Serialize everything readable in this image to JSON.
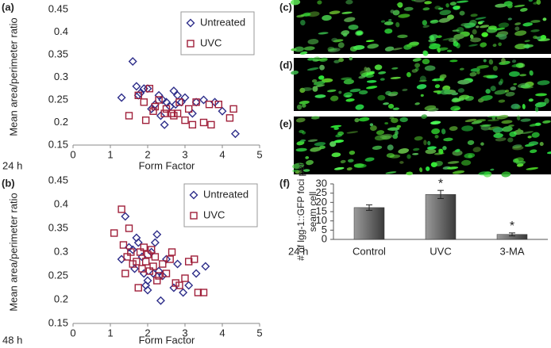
{
  "chart_data": [
    {
      "type": "scatter",
      "panel_label": "(a)",
      "annotation": "24 h",
      "xlabel": "Form Factor",
      "ylabel": "Mean area/perimeter ratio",
      "xlim": [
        0,
        5
      ],
      "xticks": [
        0,
        1,
        2,
        3,
        4,
        5
      ],
      "ylim": [
        0.15,
        0.45
      ],
      "yticks": [
        0.15,
        0.2,
        0.25,
        0.3,
        0.35,
        0.4,
        0.45
      ],
      "legend": "upper right",
      "series": [
        {
          "name": "Untreated",
          "color": "#2e2e8a",
          "marker": "diamond",
          "x": [
            1.3,
            1.6,
            1.7,
            1.75,
            1.8,
            1.9,
            2.0,
            2.1,
            2.2,
            2.3,
            2.35,
            2.4,
            2.45,
            2.5,
            2.6,
            2.7,
            2.75,
            2.8,
            2.9,
            3.0,
            3.2,
            3.3,
            3.5,
            3.8,
            4.0,
            4.35
          ],
          "values": [
            0.255,
            0.335,
            0.28,
            0.26,
            0.265,
            0.275,
            0.275,
            0.23,
            0.24,
            0.26,
            0.215,
            0.25,
            0.195,
            0.245,
            0.235,
            0.27,
            0.24,
            0.26,
            0.245,
            0.255,
            0.22,
            0.245,
            0.25,
            0.245,
            0.225,
            0.175
          ]
        },
        {
          "name": "UVC",
          "color": "#a0203a",
          "marker": "square",
          "x": [
            1.5,
            1.75,
            1.9,
            1.95,
            2.05,
            2.15,
            2.2,
            2.3,
            2.45,
            2.5,
            2.65,
            2.7,
            2.8,
            2.85,
            3.0,
            3.1,
            3.2,
            3.3,
            3.5,
            3.65,
            3.7,
            3.9,
            4.2,
            4.3
          ],
          "values": [
            0.215,
            0.26,
            0.245,
            0.205,
            0.275,
            0.225,
            0.235,
            0.25,
            0.22,
            0.23,
            0.22,
            0.215,
            0.22,
            0.245,
            0.205,
            0.23,
            0.195,
            0.245,
            0.2,
            0.24,
            0.195,
            0.24,
            0.21,
            0.23
          ]
        }
      ]
    },
    {
      "type": "scatter",
      "panel_label": "(b)",
      "annotation": "48 h",
      "xlabel": "Form Factor",
      "ylabel": "Mean area/perimeter ratio",
      "xlim": [
        0,
        5
      ],
      "xticks": [
        0,
        1,
        2,
        3,
        4,
        5
      ],
      "ylim": [
        0.15,
        0.45
      ],
      "yticks": [
        0.15,
        0.2,
        0.25,
        0.3,
        0.35,
        0.4,
        0.45
      ],
      "legend": "upper right",
      "series": [
        {
          "name": "Untreated",
          "color": "#2e2e8a",
          "marker": "diamond",
          "x": [
            1.3,
            1.4,
            1.5,
            1.6,
            1.65,
            1.7,
            1.75,
            1.85,
            1.9,
            1.95,
            2.0,
            2.1,
            2.15,
            2.2,
            2.25,
            2.3,
            2.35,
            2.4,
            2.5,
            2.7,
            2.8,
            2.95,
            3.1,
            3.3,
            3.55,
            2.0
          ],
          "values": [
            0.285,
            0.375,
            0.31,
            0.305,
            0.265,
            0.33,
            0.32,
            0.29,
            0.255,
            0.23,
            0.24,
            0.3,
            0.255,
            0.32,
            0.337,
            0.26,
            0.198,
            0.25,
            0.285,
            0.225,
            0.275,
            0.215,
            0.23,
            0.255,
            0.27,
            0.22
          ]
        },
        {
          "name": "UVC",
          "color": "#a0203a",
          "marker": "square",
          "x": [
            1.1,
            1.3,
            1.35,
            1.4,
            1.45,
            1.5,
            1.55,
            1.6,
            1.7,
            1.75,
            1.8,
            1.85,
            1.9,
            1.95,
            2.0,
            2.05,
            2.1,
            2.15,
            2.2,
            2.25,
            2.3,
            2.4,
            2.5,
            2.6,
            2.75,
            2.85,
            3.0,
            3.1,
            3.25,
            3.35,
            3.5,
            2.65
          ],
          "values": [
            0.34,
            0.39,
            0.315,
            0.255,
            0.29,
            0.35,
            0.3,
            0.275,
            0.28,
            0.225,
            0.3,
            0.265,
            0.31,
            0.28,
            0.295,
            0.26,
            0.305,
            0.27,
            0.29,
            0.24,
            0.25,
            0.275,
            0.255,
            0.285,
            0.235,
            0.23,
            0.245,
            0.28,
            0.285,
            0.215,
            0.215,
            0.3
          ]
        }
      ]
    },
    {
      "type": "bar",
      "panel_label": "(f)",
      "annotation": "24 h",
      "ylabel": [
        "# of lgg-1::GFP foci per",
        "seam cell"
      ],
      "categories": [
        "Control",
        "UVC",
        "3-MA"
      ],
      "values": [
        17.2,
        24.3,
        2.7
      ],
      "errors": [
        1.5,
        2.2,
        0.8
      ],
      "significance": [
        null,
        "*",
        "*"
      ],
      "color": "#6e6e6e",
      "ylim": [
        0,
        30
      ],
      "yticks": [
        0,
        5,
        10,
        15,
        20,
        25,
        30
      ]
    }
  ],
  "image_panels": [
    {
      "label": "(c)"
    },
    {
      "label": "(d)"
    },
    {
      "label": "(e)"
    }
  ]
}
